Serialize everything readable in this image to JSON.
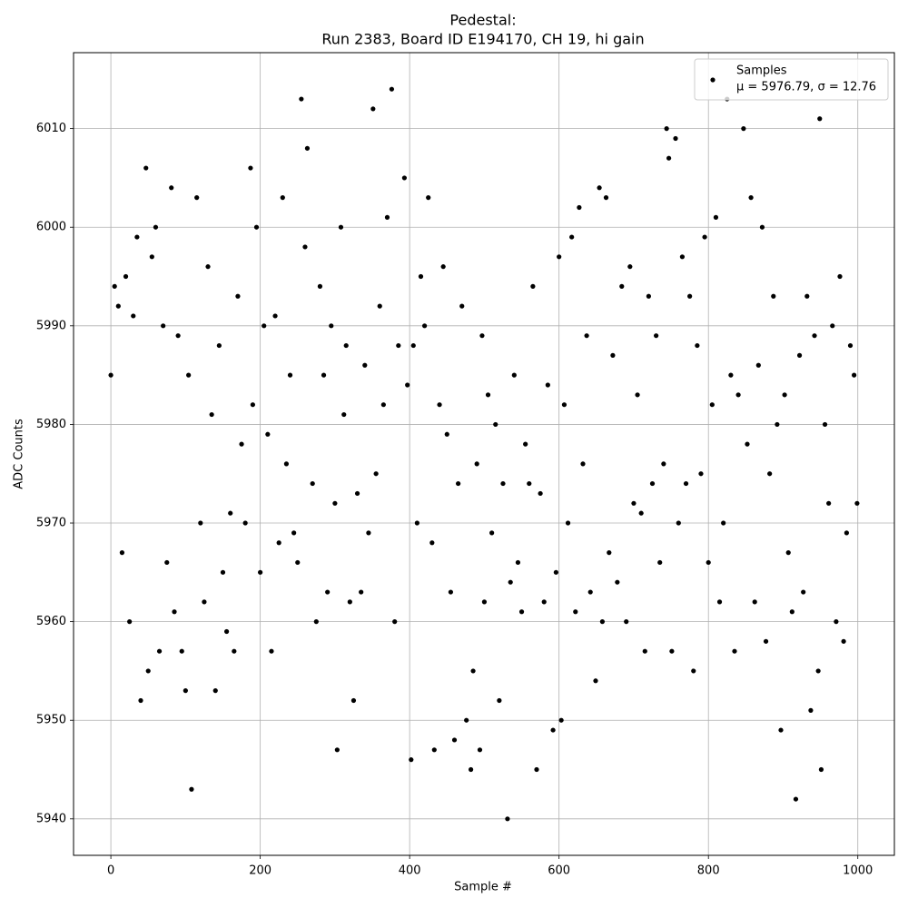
{
  "chart_data": {
    "type": "scatter",
    "title": "Pedestal:",
    "subtitle": "Run 2383, Board ID E194170, CH 19, hi gain",
    "x_label": "Sample #",
    "y_label": "ADC Counts",
    "xlim": [
      -49.95,
      1048.95
    ],
    "ylim": [
      5936.3,
      6017.7
    ],
    "xticks": [
      0,
      200,
      400,
      600,
      800,
      1000
    ],
    "yticks": [
      5940,
      5950,
      5960,
      5970,
      5980,
      5990,
      6000,
      6010
    ],
    "grid": true,
    "legend": "upper right",
    "legend_note": "μ = 5976.79, σ = 12.76",
    "series": [
      {
        "name": "Samples",
        "color": "#000000",
        "x": [
          0,
          5,
          10,
          15,
          20,
          25,
          30,
          35,
          40,
          47,
          50,
          55,
          60,
          65,
          70,
          75,
          81,
          85,
          90,
          95,
          100,
          104,
          108,
          115,
          120,
          125,
          130,
          135,
          140,
          145,
          150,
          155,
          160,
          165,
          170,
          175,
          180,
          187,
          190,
          195,
          200,
          205,
          210,
          215,
          220,
          225,
          230,
          235,
          240,
          245,
          250,
          255,
          260,
          263,
          270,
          275,
          280,
          285,
          290,
          295,
          300,
          303,
          308,
          312,
          315,
          320,
          325,
          330,
          335,
          340,
          345,
          351,
          355,
          360,
          365,
          370,
          376,
          380,
          385,
          393,
          397,
          402,
          405,
          410,
          415,
          420,
          425,
          430,
          433,
          440,
          445,
          450,
          455,
          460,
          465,
          470,
          476,
          482,
          485,
          490,
          494,
          497,
          500,
          505,
          510,
          515,
          520,
          525,
          531,
          535,
          540,
          545,
          550,
          555,
          560,
          565,
          570,
          575,
          580,
          585,
          592,
          596,
          600,
          603,
          607,
          612,
          617,
          622,
          627,
          632,
          637,
          642,
          649,
          654,
          658,
          663,
          667,
          672,
          678,
          684,
          690,
          695,
          700,
          705,
          710,
          715,
          720,
          725,
          730,
          735,
          740,
          744,
          747,
          751,
          756,
          760,
          765,
          770,
          775,
          780,
          785,
          790,
          795,
          800,
          805,
          810,
          815,
          820,
          825,
          830,
          835,
          840,
          847,
          852,
          857,
          862,
          867,
          872,
          877,
          882,
          887,
          892,
          897,
          902,
          907,
          912,
          917,
          922,
          927,
          932,
          937,
          942,
          947,
          949,
          951,
          956,
          961,
          966,
          971,
          976,
          981,
          985,
          990,
          995,
          999
        ],
        "values": [
          5985,
          5994,
          5992,
          5967,
          5995,
          5960,
          5991,
          5999,
          5952,
          6006,
          5955,
          5997,
          6000,
          5957,
          5990,
          5966,
          6004,
          5961,
          5989,
          5957,
          5953,
          5985,
          5943,
          6003,
          5970,
          5962,
          5996,
          5981,
          5953,
          5988,
          5965,
          5959,
          5971,
          5957,
          5993,
          5978,
          5970,
          6006,
          5982,
          6000,
          5965,
          5990,
          5979,
          5957,
          5991,
          5968,
          6003,
          5976,
          5985,
          5969,
          5966,
          6013,
          5998,
          6008,
          5974,
          5960,
          5994,
          5985,
          5963,
          5990,
          5972,
          5947,
          6000,
          5981,
          5988,
          5962,
          5952,
          5973,
          5963,
          5986,
          5969,
          6012,
          5975,
          5992,
          5982,
          6001,
          6014,
          5960,
          5988,
          6005,
          5984,
          5946,
          5988,
          5970,
          5995,
          5990,
          6003,
          5968,
          5947,
          5982,
          5996,
          5979,
          5963,
          5948,
          5974,
          5992,
          5950,
          5945,
          5955,
          5976,
          5947,
          5989,
          5962,
          5983,
          5969,
          5980,
          5952,
          5974,
          5940,
          5964,
          5985,
          5966,
          5961,
          5978,
          5974,
          5994,
          5945,
          5973,
          5962,
          5984,
          5949,
          5965,
          5997,
          5950,
          5982,
          5970,
          5999,
          5961,
          6002,
          5976,
          5989,
          5963,
          5954,
          6004,
          5960,
          6003,
          5967,
          5987,
          5964,
          5994,
          5960,
          5996,
          5972,
          5983,
          5971,
          5957,
          5993,
          5974,
          5989,
          5966,
          5976,
          6010,
          6007,
          5957,
          6009,
          5970,
          5997,
          5974,
          5993,
          5955,
          5988,
          5975,
          5999,
          5966,
          5982,
          6001,
          5962,
          5970,
          6013,
          5985,
          5957,
          5983,
          6010,
          5978,
          6003,
          5962,
          5986,
          6000,
          5958,
          5975,
          5993,
          5980,
          5949,
          5983,
          5967,
          5961,
          5942,
          5987,
          5963,
          5993,
          5951,
          5989,
          5955,
          6011,
          5945,
          5980,
          5972,
          5990,
          5960,
          5995,
          5958,
          5969,
          5988,
          5985,
          5972
        ]
      }
    ]
  }
}
